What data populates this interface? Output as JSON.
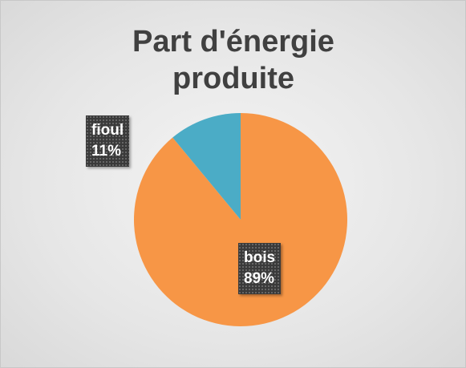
{
  "chart_data": {
    "type": "pie",
    "title": "Part d'énergie produite",
    "categories": [
      "bois",
      "fioul"
    ],
    "values": [
      89,
      11
    ],
    "value_labels": [
      "89%",
      "11%"
    ],
    "colors": [
      "#F79646",
      "#4BACC6"
    ]
  }
}
